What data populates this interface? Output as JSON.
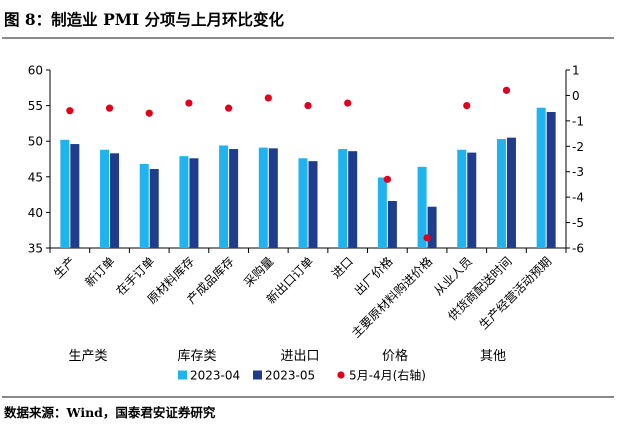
{
  "title": "图 8：制造业 PMI 分项与上月环比变化",
  "source": "数据来源：Wind，国泰君安证券研究",
  "chart_data": {
    "type": "bar",
    "categories": [
      "生产",
      "新订单",
      "在手订单",
      "原材料库存",
      "产成品库存",
      "采购量",
      "新出口订单",
      "进口",
      "出厂价格",
      "主要原材料购进价格",
      "从业人员",
      "供货商配送时间",
      "生产经营活动预期"
    ],
    "series": [
      {
        "name": "2023-04",
        "type": "bar",
        "axis": "left",
        "color": "#1fb4f0",
        "values": [
          50.2,
          48.8,
          46.8,
          47.9,
          49.4,
          49.1,
          47.6,
          48.9,
          44.9,
          46.4,
          48.8,
          50.3,
          54.7
        ]
      },
      {
        "name": "2023-05",
        "type": "bar",
        "axis": "left",
        "color": "#1f3d8c",
        "values": [
          49.6,
          48.3,
          46.1,
          47.6,
          48.9,
          49.0,
          47.2,
          48.6,
          41.6,
          40.8,
          48.4,
          50.5,
          54.1
        ]
      },
      {
        "name": "5月-4月(右轴)",
        "type": "scatter",
        "axis": "right",
        "color": "#e0001b",
        "values": [
          -0.6,
          -0.5,
          -0.7,
          -0.3,
          -0.5,
          -0.1,
          -0.4,
          -0.3,
          -3.3,
          -5.6,
          -0.4,
          0.2,
          null
        ]
      }
    ],
    "ylim_left": [
      35,
      60
    ],
    "yticks_left": [
      35,
      40,
      45,
      50,
      55,
      60
    ],
    "ylim_right": [
      -6,
      1
    ],
    "yticks_right": [
      -6,
      -5,
      -4,
      -3,
      -2,
      -1,
      0,
      1
    ],
    "groups": [
      {
        "label": "生产类",
        "start": 0,
        "end": 2
      },
      {
        "label": "库存类",
        "start": 3,
        "end": 4
      },
      {
        "label": "进出口",
        "start": 5,
        "end": 7
      },
      {
        "label": "价格",
        "start": 8,
        "end": 9
      },
      {
        "label": "其他",
        "start": 10,
        "end": 12
      }
    ],
    "legend_position": "bottom",
    "grid": false
  }
}
